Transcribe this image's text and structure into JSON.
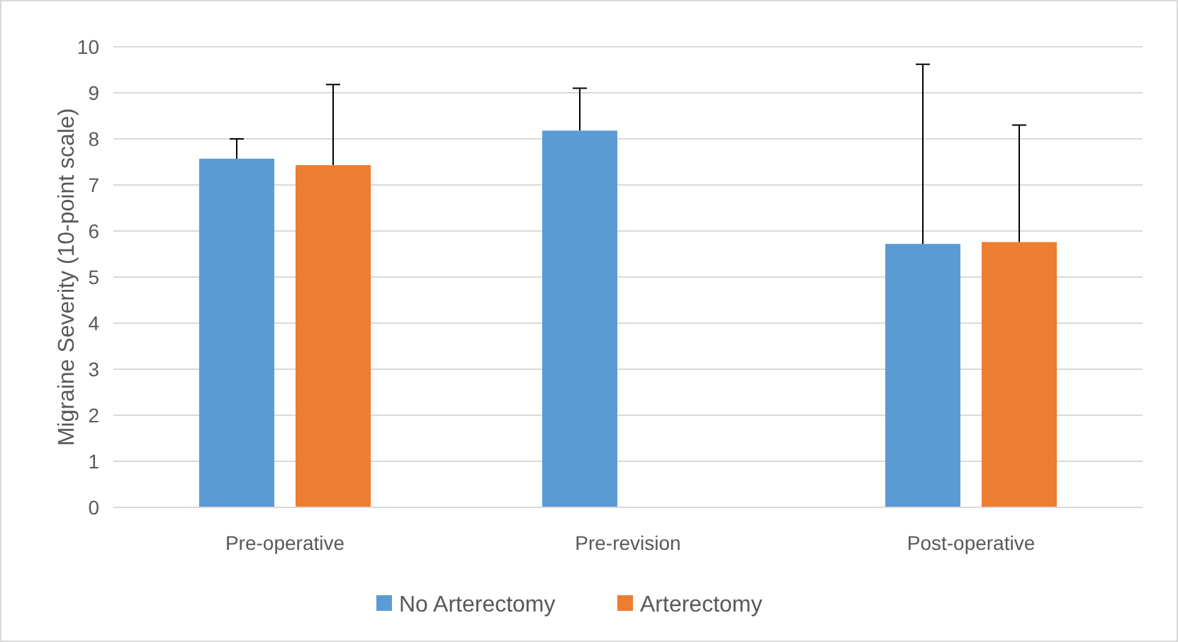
{
  "chart_data": {
    "type": "bar",
    "ylabel": "Migraine Severity (10-point scale)",
    "categories": [
      "Pre-operative",
      "Pre-revision",
      "Post-operative"
    ],
    "series": [
      {
        "name": "No Arterectomy",
        "color": "#5b9bd5",
        "values": [
          7.57,
          8.18,
          5.72
        ],
        "errors": [
          [
            7.57,
            8.0
          ],
          [
            8.18,
            9.1
          ],
          [
            5.72,
            9.62
          ]
        ]
      },
      {
        "name": "Arterectomy",
        "color": "#ed7d31",
        "values": [
          7.43,
          null,
          5.76
        ],
        "errors": [
          [
            7.43,
            9.18
          ],
          null,
          [
            5.76,
            8.3
          ]
        ]
      }
    ],
    "ylim": [
      0,
      10
    ],
    "yticks": [
      0,
      1,
      2,
      3,
      4,
      5,
      6,
      7,
      8,
      9,
      10
    ],
    "grid": "y",
    "legend": "bottom"
  }
}
